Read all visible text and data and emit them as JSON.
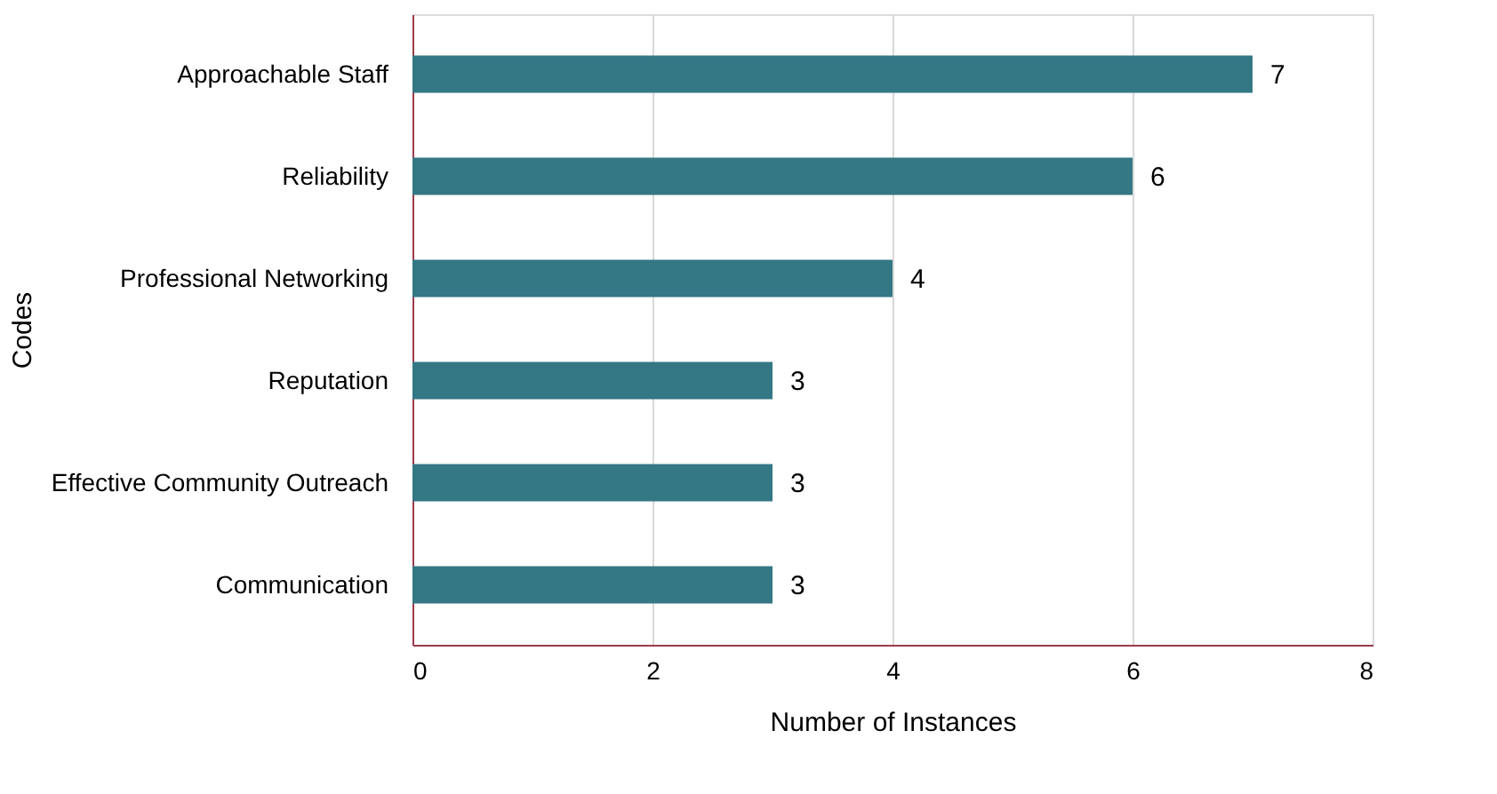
{
  "chart_data": {
    "type": "bar",
    "orientation": "horizontal",
    "xlabel": "Number of Instances",
    "ylabel": "Codes",
    "categories": [
      "Approachable Staff",
      "Reliability",
      "Professional Networking",
      "Reputation",
      "Effective Community Outreach",
      "Communication"
    ],
    "values": [
      7,
      6,
      4,
      3,
      3,
      3
    ],
    "color": "#347785",
    "xlim": [
      0,
      8
    ],
    "xticks": [
      0,
      2,
      4,
      6,
      8
    ],
    "grid": "x",
    "data_labels": true
  }
}
